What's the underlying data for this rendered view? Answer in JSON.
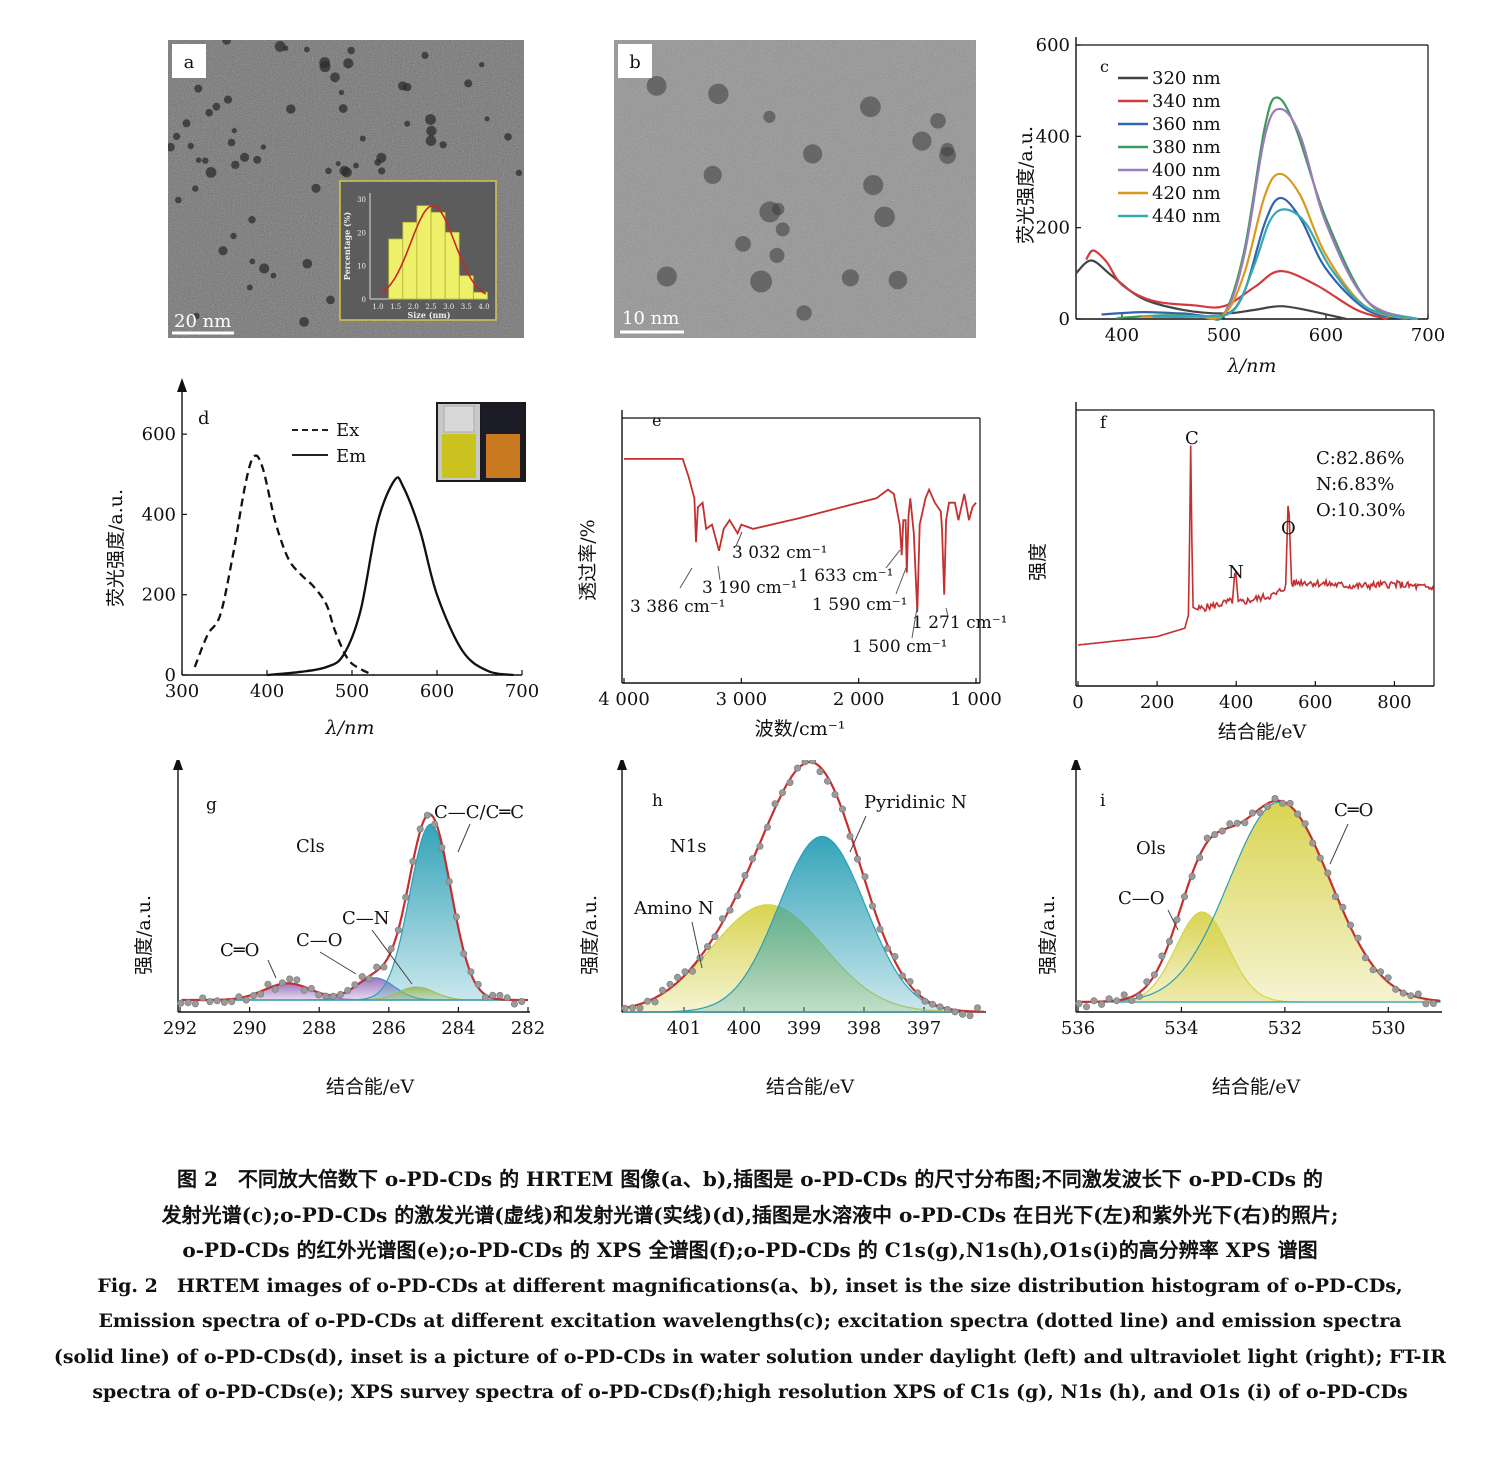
{
  "panels": {
    "a": {
      "label": "a",
      "scale_bar": "20 nm",
      "inset": {
        "type": "bar",
        "xlabel": "Size (nm)",
        "ylabel": "Percentage (%)",
        "x_ticks": [
          "1.0",
          "1.5",
          "2.0",
          "2.5",
          "3.0",
          "3.5",
          "4.0"
        ],
        "y_ticks": [
          "0",
          "10",
          "20",
          "30"
        ],
        "bin_centers": [
          1.5,
          1.9,
          2.3,
          2.7,
          3.1,
          3.5,
          3.9
        ],
        "values": [
          18,
          23,
          28,
          26,
          20,
          7,
          2
        ],
        "fit": "gaussian"
      }
    },
    "b": {
      "label": "b",
      "scale_bar": "10 nm"
    },
    "c": {
      "label": "c",
      "ylabel": "荧光强度/a.u.",
      "xlabel": "λ/nm",
      "x_ticks": [
        "400",
        "500",
        "600",
        "700"
      ],
      "y_ticks": [
        "0",
        "200",
        "400",
        "600"
      ]
    },
    "d": {
      "label": "d",
      "ylabel": "荧光强度/a.u.",
      "xlabel": "λ/nm",
      "x_ticks": [
        "300",
        "400",
        "500",
        "600",
        "700"
      ],
      "y_ticks": [
        "0",
        "200",
        "400",
        "600"
      ],
      "legend": [
        "Ex",
        "Em"
      ]
    },
    "e": {
      "label": "e",
      "ylabel": "透过率/%",
      "xlabel": "波数/cm⁻¹",
      "x_ticks": [
        "4 000",
        "3 000",
        "2 000",
        "1 000"
      ],
      "annotations": [
        "3 386 cm⁻¹",
        "3 190 cm⁻¹",
        "3 032 cm⁻¹",
        "1 633 cm⁻¹",
        "1 590 cm⁻¹",
        "1 500 cm⁻¹",
        "1 271 cm⁻¹"
      ]
    },
    "f": {
      "label": "f",
      "ylabel": "强度",
      "xlabel": "结合能/eV",
      "x_ticks": [
        "0",
        "200",
        "400",
        "600",
        "800"
      ],
      "peaks": [
        "C",
        "N",
        "O"
      ],
      "composition": [
        "C:82.86%",
        "N:6.83%",
        "O:10.30%"
      ]
    },
    "g": {
      "label": "g",
      "title": "Cls",
      "ylabel": "强度/a.u.",
      "xlabel": "结合能/eV",
      "x_ticks": [
        "292",
        "290",
        "288",
        "286",
        "284",
        "282"
      ],
      "components": [
        "C═O",
        "C—O",
        "C—N",
        "C—C/C═C"
      ]
    },
    "h": {
      "label": "h",
      "title": "N1s",
      "ylabel": "强度/a.u.",
      "xlabel": "结合能/eV",
      "x_ticks": [
        "401",
        "400",
        "399",
        "398",
        "397"
      ],
      "components": [
        "Amino N",
        "Pyridinic N"
      ]
    },
    "i": {
      "label": "i",
      "title": "Ols",
      "ylabel": "强度/a.u.",
      "xlabel": "结合能/eV",
      "x_ticks": [
        "536",
        "534",
        "532",
        "530"
      ],
      "components": [
        "C—O",
        "C═O"
      ]
    }
  },
  "chart_data": [
    {
      "type": "line",
      "panel": "c",
      "xlim": [
        355,
        700
      ],
      "ylim": [
        0,
        600
      ],
      "xlabel": "λ/nm",
      "ylabel": "荧光强度/a.u.",
      "legend_placement": "top-left",
      "series": [
        {
          "name": "320 nm",
          "color": "#444444",
          "x": [
            355,
            370,
            390,
            420,
            460,
            500,
            530,
            555,
            580,
            620
          ],
          "y": [
            100,
            128,
            95,
            45,
            20,
            12,
            20,
            28,
            20,
            0
          ]
        },
        {
          "name": "340 nm",
          "color": "#d23b3b",
          "x": [
            365,
            372,
            385,
            400,
            430,
            470,
            500,
            530,
            555,
            590,
            630,
            660
          ],
          "y": [
            130,
            150,
            125,
            75,
            40,
            30,
            28,
            70,
            105,
            75,
            20,
            0
          ]
        },
        {
          "name": "360 nm",
          "color": "#2f64b0",
          "x": [
            380,
            420,
            460,
            500,
            520,
            540,
            555,
            575,
            600,
            640,
            680
          ],
          "y": [
            10,
            15,
            12,
            8,
            60,
            210,
            265,
            220,
            110,
            20,
            0
          ]
        },
        {
          "name": "380 nm",
          "color": "#3c9a5a",
          "x": [
            395,
            440,
            480,
            500,
            520,
            540,
            552,
            570,
            600,
            640,
            680
          ],
          "y": [
            2,
            8,
            6,
            10,
            150,
            420,
            485,
            420,
            220,
            40,
            0
          ]
        },
        {
          "name": "400 nm",
          "color": "#9b7bbd",
          "x": [
            420,
            470,
            500,
            520,
            540,
            555,
            575,
            600,
            640,
            690
          ],
          "y": [
            5,
            6,
            12,
            140,
            400,
            460,
            400,
            210,
            40,
            0
          ]
        },
        {
          "name": "420 nm",
          "color": "#d89a1d",
          "x": [
            420,
            470,
            500,
            520,
            540,
            555,
            575,
            600,
            640,
            690
          ],
          "y": [
            5,
            6,
            10,
            100,
            270,
            318,
            270,
            140,
            25,
            0
          ]
        },
        {
          "name": "440 nm",
          "color": "#36a8b0",
          "x": [
            430,
            480,
            510,
            530,
            545,
            560,
            580,
            605,
            640,
            690
          ],
          "y": [
            5,
            6,
            20,
            120,
            215,
            240,
            210,
            110,
            25,
            0
          ]
        }
      ]
    },
    {
      "type": "line",
      "panel": "d",
      "xlim": [
        300,
        700
      ],
      "ylim": [
        0,
        700
      ],
      "xlabel": "λ/nm",
      "ylabel": "荧光强度/a.u.",
      "legend_placement": "top-center",
      "series": [
        {
          "name": "Ex",
          "style": "dashed",
          "x": [
            315,
            330,
            345,
            360,
            375,
            385,
            395,
            410,
            425,
            440,
            455,
            470,
            480,
            495,
            510,
            525
          ],
          "y": [
            20,
            100,
            150,
            300,
            480,
            545,
            515,
            380,
            290,
            250,
            220,
            175,
            110,
            40,
            15,
            0
          ]
        },
        {
          "name": "Em",
          "style": "solid",
          "x": [
            400,
            440,
            470,
            490,
            510,
            530,
            550,
            560,
            580,
            600,
            630,
            660,
            690
          ],
          "y": [
            0,
            8,
            20,
            50,
            160,
            380,
            485,
            470,
            360,
            200,
            60,
            10,
            0
          ]
        }
      ]
    },
    {
      "type": "line",
      "panel": "e",
      "xlim": [
        4000,
        1000
      ],
      "xlabel": "波数/cm⁻¹",
      "ylabel": "透过率/%",
      "series": [
        {
          "name": "",
          "color": "#c42f2f",
          "x": [
            4000,
            3500,
            3450,
            3400,
            3386,
            3370,
            3330,
            3300,
            3250,
            3190,
            3150,
            3100,
            3032,
            3000,
            2900,
            2500,
            2000,
            1850,
            1750,
            1700,
            1650,
            1633,
            1620,
            1600,
            1590,
            1575,
            1560,
            1530,
            1500,
            1480,
            1430,
            1400,
            1350,
            1300,
            1290,
            1271,
            1255,
            1230,
            1180,
            1150,
            1100,
            1060,
            1030,
            1000
          ],
          "y": [
            100,
            100,
            92,
            82,
            62,
            78,
            80,
            68,
            70,
            58,
            68,
            72,
            66,
            70,
            68,
            73,
            80,
            82,
            86,
            84,
            70,
            56,
            72,
            72,
            48,
            74,
            82,
            66,
            30,
            70,
            82,
            86,
            80,
            76,
            68,
            38,
            72,
            80,
            80,
            72,
            84,
            72,
            78,
            80
          ]
        }
      ]
    },
    {
      "type": "line",
      "panel": "f",
      "xlim": [
        0,
        900
      ],
      "xlabel": "结合能/eV",
      "ylabel": "强度",
      "series": [
        {
          "name": "",
          "color": "#c42f2f",
          "x": [
            0,
            100,
            200,
            270,
            280,
            285,
            290,
            300,
            350,
            390,
            398,
            405,
            450,
            500,
            525,
            532,
            540,
            560,
            600,
            700,
            800,
            900
          ],
          "y": [
            1,
            1.2,
            1.4,
            1.8,
            2.5,
            10.5,
            2.8,
            2.7,
            2.9,
            3.1,
            4.6,
            3.0,
            3.2,
            3.4,
            3.8,
            8.3,
            3.9,
            4.0,
            3.95,
            3.8,
            3.9,
            3.7
          ]
        }
      ]
    },
    {
      "type": "area",
      "panel": "g",
      "xlim": [
        292,
        282
      ],
      "xlabel": "结合能/eV",
      "ylabel": "强度/a.u.",
      "series": [
        {
          "name": "C═O",
          "color": "#9b6fc0",
          "center": 288.9,
          "height": 0.09,
          "fwhm": 1.6
        },
        {
          "name": "C—O",
          "color": "#3a8fd0",
          "center": 286.4,
          "height": 0.12,
          "fwhm": 1.3
        },
        {
          "name": "C—N",
          "color": "#c8c83c",
          "center": 285.2,
          "height": 0.07,
          "fwhm": 1.2
        },
        {
          "name": "C—C/C═C",
          "color": "#2a9fb5",
          "center": 284.8,
          "height": 0.95,
          "fwhm": 1.4
        }
      ]
    },
    {
      "type": "area",
      "panel": "h",
      "xlim": [
        402,
        396
      ],
      "xlabel": "结合能/eV",
      "ylabel": "强度/a.u.",
      "series": [
        {
          "name": "Amino N",
          "color": "#d7d24a",
          "center": 399.6,
          "height": 0.55,
          "fwhm": 2.2
        },
        {
          "name": "Pyridinic N",
          "color": "#2a9fb5",
          "center": 398.7,
          "height": 0.9,
          "fwhm": 1.7
        }
      ]
    },
    {
      "type": "area",
      "panel": "i",
      "xlim": [
        536,
        529
      ],
      "xlabel": "结合能/eV",
      "ylabel": "强度/a.u.",
      "series": [
        {
          "name": "C—O",
          "color": "#d7d24a",
          "center": 533.6,
          "height": 0.45,
          "fwhm": 1.2
        },
        {
          "name": "C═O",
          "color": "#2a9fb5",
          "center": 532.1,
          "height": 1.0,
          "fwhm": 2.3
        }
      ]
    }
  ],
  "caption": {
    "zh": [
      "图 2　不同放大倍数下 o-PD-CDs 的 HRTEM 图像(a、b),插图是 o-PD-CDs 的尺寸分布图;不同激发波长下 o-PD-CDs 的",
      "发射光谱(c);o-PD-CDs 的激发光谱(虚线)和发射光谱(实线)(d),插图是水溶液中 o-PD-CDs 在日光下(左)和紫外光下(右)的照片;",
      "o-PD-CDs 的红外光谱图(e);o-PD-CDs 的 XPS 全谱图(f);o-PD-CDs 的 C1s(g),N1s(h),O1s(i)的高分辨率 XPS 谱图"
    ],
    "en": [
      "Fig. 2　HRTEM images of o-PD-CDs at different magnifications(a、b), inset is the size distribution histogram of o-PD-CDs,",
      "Emission spectra of o-PD-CDs at different excitation wavelengths(c); excitation spectra (dotted line) and emission spectra",
      "(solid line) of o-PD-CDs(d), inset is a picture of o-PD-CDs in water solution under daylight (left) and ultraviolet light (right); FT-IR",
      "spectra of o-PD-CDs(e); XPS survey spectra of o-PD-CDs(f);high resolution XPS of C1s (g), N1s (h), and O1s (i) of o-PD-CDs"
    ]
  }
}
